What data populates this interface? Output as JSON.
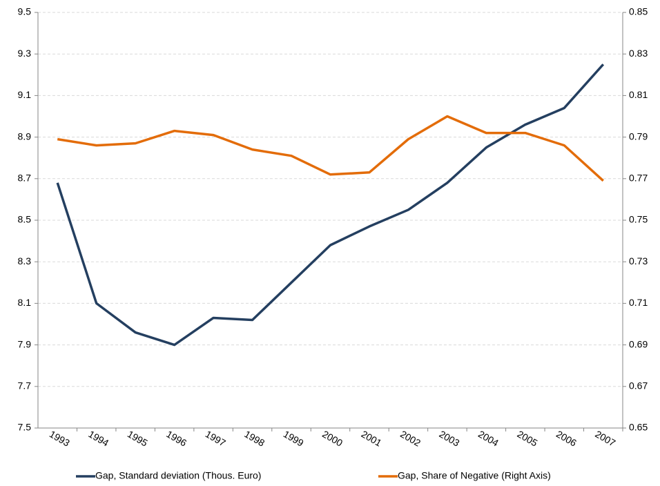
{
  "chart_data": {
    "type": "line",
    "categories": [
      "1993",
      "1994",
      "1995",
      "1996",
      "1997",
      "1998",
      "1999",
      "2000",
      "2001",
      "2002",
      "2003",
      "2004",
      "2005",
      "2006",
      "2007"
    ],
    "series": [
      {
        "name": "Gap, Standard deviation (Thous. Euro)",
        "color": "#243f60",
        "axis": "y",
        "values": [
          8.68,
          8.1,
          7.96,
          7.9,
          8.03,
          8.02,
          8.2,
          8.38,
          8.47,
          8.55,
          8.68,
          8.85,
          8.96,
          9.04,
          9.25
        ]
      },
      {
        "name": "Gap, Share of Negative (Right Axis)",
        "color": "#e36c09",
        "axis": "y2",
        "values": [
          0.789,
          0.786,
          0.787,
          0.793,
          0.791,
          0.784,
          0.781,
          0.772,
          0.773,
          0.789,
          0.8,
          0.792,
          0.792,
          0.786,
          0.769
        ]
      }
    ],
    "ylim": [
      7.5,
      9.5
    ],
    "yticks": [
      7.5,
      7.7,
      7.9,
      8.1,
      8.3,
      8.5,
      8.7,
      8.9,
      9.1,
      9.3,
      9.5
    ],
    "y2lim": [
      0.65,
      0.85
    ],
    "y2ticks": [
      0.65,
      0.67,
      0.69,
      0.71,
      0.73,
      0.75,
      0.77,
      0.79,
      0.81,
      0.83,
      0.85
    ],
    "grid": true,
    "legend": "bottom"
  }
}
